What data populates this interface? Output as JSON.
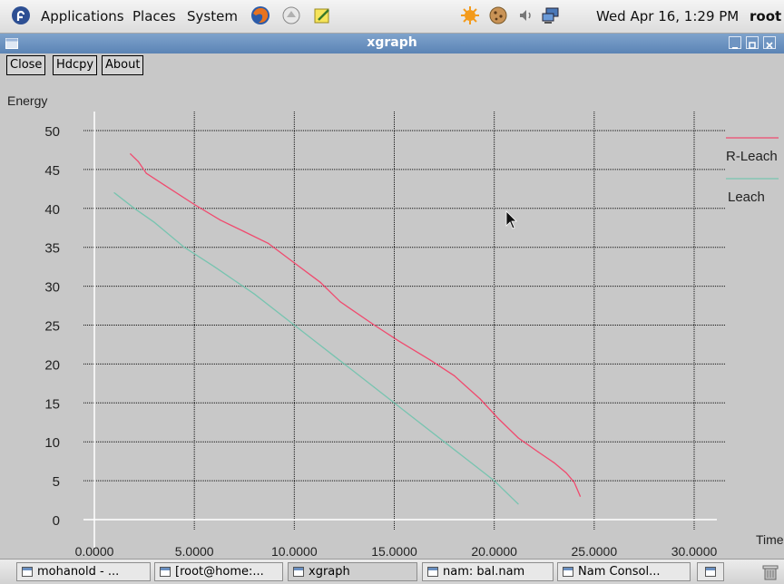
{
  "top_panel": {
    "menus": [
      "Applications",
      "Places",
      "System"
    ],
    "clock": "Wed Apr 16,  1:29 PM",
    "user": "root",
    "launcher_icons": [
      "fedora-logo-icon",
      "firefox-icon",
      "evolution-icon",
      "notes-icon"
    ],
    "tray_icons": [
      "update-icon",
      "cookie-icon",
      "volume-icon",
      "network-icon"
    ]
  },
  "window": {
    "title": "xgraph",
    "buttons": [
      "Close",
      "Hdcpy",
      "About"
    ]
  },
  "colors": {
    "r_leach": "#f04a6e",
    "leach": "#78c4b0",
    "panel_bg": "#c8c8c8",
    "titlebar": "#6a90c0"
  },
  "chart_data": {
    "type": "line",
    "xlabel": "Time",
    "ylabel": "Energy",
    "xlim": [
      0,
      30
    ],
    "ylim": [
      0,
      50
    ],
    "x_ticks": [
      "0.0000",
      "5.0000",
      "10.0000",
      "15.0000",
      "20.0000",
      "25.0000",
      "30.0000"
    ],
    "y_ticks": [
      "0",
      "5",
      "10",
      "15",
      "20",
      "25",
      "30",
      "35",
      "40",
      "45",
      "50"
    ],
    "grid": true,
    "legend_position": "right",
    "series": [
      {
        "name": "R-Leach",
        "color": "#f04a6e",
        "x": [
          1.8,
          2.2,
          2.6,
          3.5,
          5.0,
          6.3,
          7.5,
          8.7,
          10.0,
          11.3,
          12.3,
          14.0,
          15.2,
          16.8,
          18.0,
          19.3,
          20.2,
          21.2,
          22.2,
          23.0,
          23.6,
          24.0,
          24.3
        ],
        "y": [
          47.0,
          46.0,
          44.5,
          43.0,
          40.5,
          38.5,
          37.0,
          35.5,
          33.0,
          30.5,
          28.0,
          25.0,
          23.0,
          20.5,
          18.5,
          15.5,
          13.0,
          10.5,
          8.7,
          7.3,
          6.0,
          4.8,
          3.0
        ]
      },
      {
        "name": "Leach",
        "color": "#78c4b0",
        "x": [
          1.0,
          2.0,
          3.0,
          4.5,
          6.0,
          8.0,
          10.0,
          12.0,
          14.0,
          16.0,
          18.0,
          20.0,
          21.2
        ],
        "y": [
          42.0,
          40.0,
          38.2,
          35.0,
          32.5,
          29.0,
          25.0,
          21.0,
          17.0,
          13.0,
          9.0,
          5.0,
          2.0
        ]
      }
    ]
  },
  "taskbar": {
    "tasks": [
      "mohanold - ...",
      "[root@home:...",
      "xgraph",
      "nam: bal.nam",
      "Nam Consol..."
    ]
  }
}
